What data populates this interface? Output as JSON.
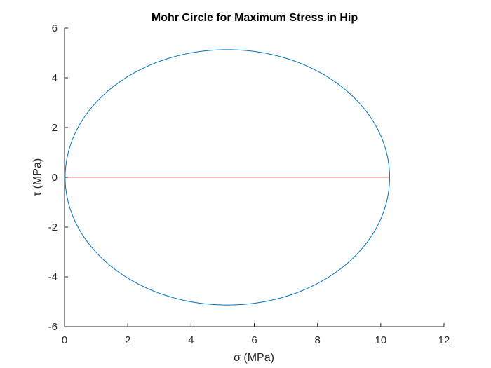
{
  "chart_data": {
    "type": "line",
    "title": "Mohr Circle for Maximum Stress in Hip",
    "xlabel": "σ (MPa)",
    "ylabel": "τ (MPa)",
    "xlim": [
      0,
      12
    ],
    "ylim": [
      -6,
      6
    ],
    "xticks": [
      0,
      2,
      4,
      6,
      8,
      10,
      12
    ],
    "yticks": [
      -6,
      -4,
      -2,
      0,
      2,
      4,
      6
    ],
    "grid": false,
    "series": [
      {
        "kind": "circle",
        "center": [
          5.15,
          0
        ],
        "radius": 5.13,
        "color": "#0072BD"
      },
      {
        "kind": "segment",
        "x": [
          0,
          10.28
        ],
        "y": [
          0,
          0
        ],
        "color": "#E8828A"
      }
    ]
  }
}
